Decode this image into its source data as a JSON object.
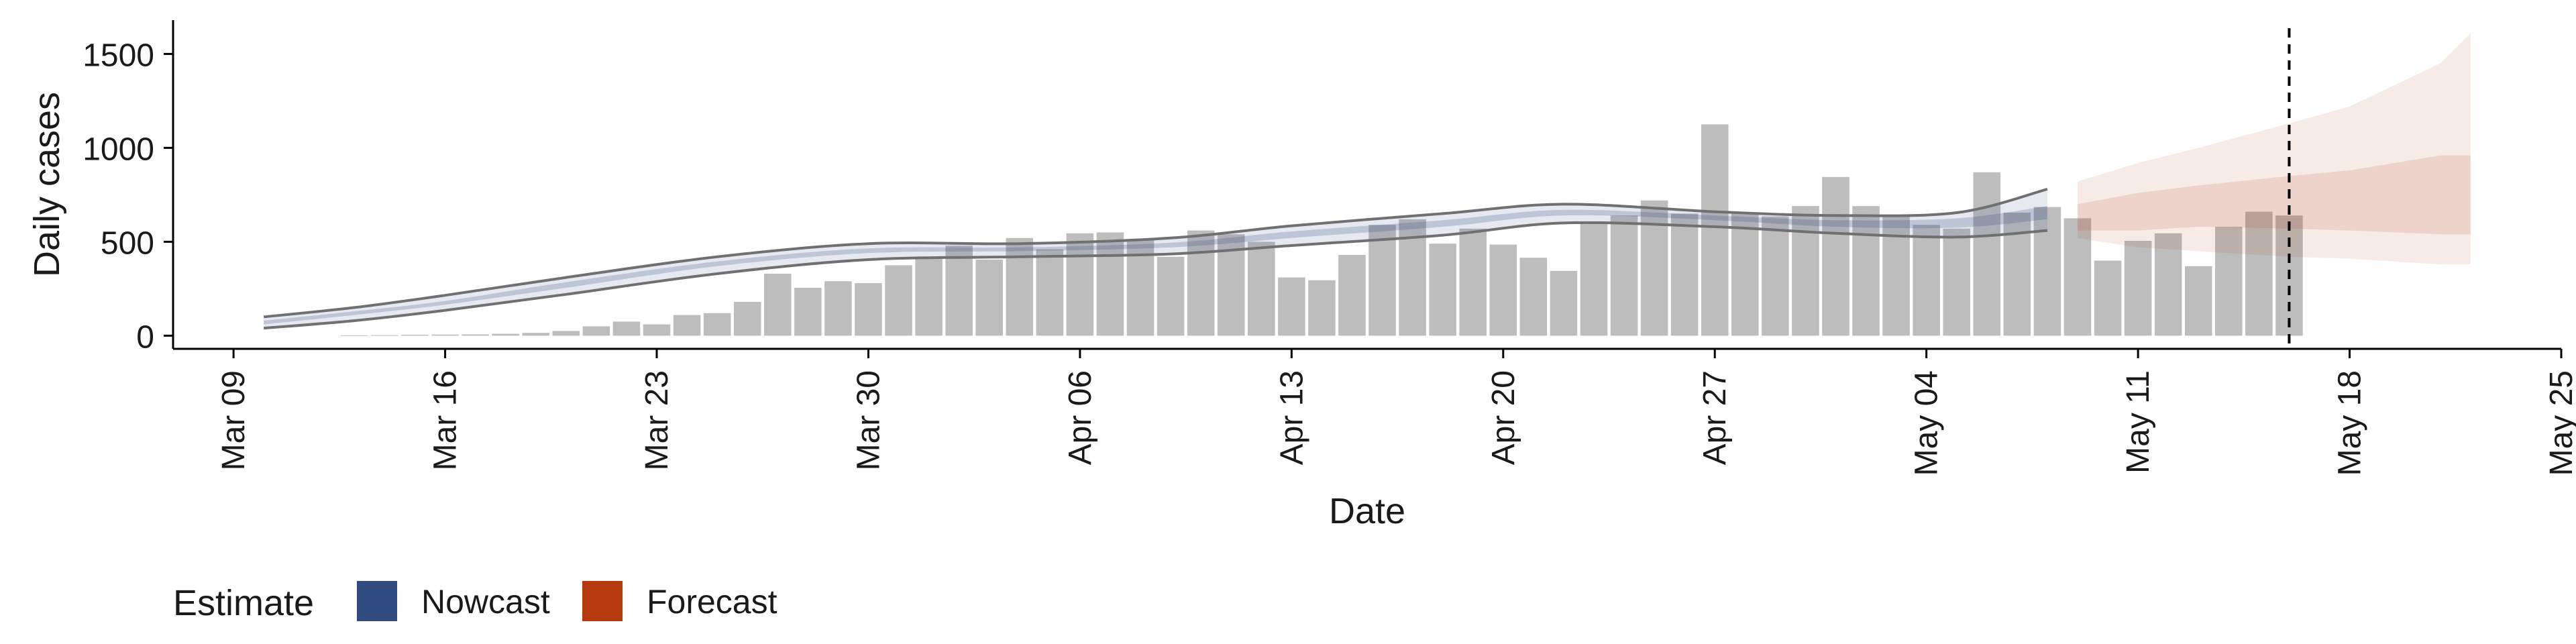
{
  "chart_data": {
    "type": "bar",
    "xlabel": "Date",
    "ylabel": "Daily cases",
    "x_ticks": [
      "Mar 09",
      "Mar 16",
      "Mar 23",
      "Mar 30",
      "Apr 06",
      "Apr 13",
      "Apr 20",
      "Apr 27",
      "May 04",
      "May 11",
      "May 18",
      "May 25"
    ],
    "y_ticks": [
      0,
      500,
      1000,
      1500
    ],
    "xlim": [
      "2020-03-07",
      "2020-05-25"
    ],
    "ylim": [
      -70,
      1680
    ],
    "grid": false,
    "legend": {
      "title": "Estimate",
      "position": "bottom-left",
      "entries": [
        {
          "label": "Nowcast",
          "color": "#2f4b80"
        },
        {
          "label": "Forecast",
          "color": "#b5390c"
        }
      ]
    },
    "forecast_start": "2020-05-16",
    "colors": {
      "bars": "#bdbdbd",
      "nowcast": "#2f4b80",
      "forecast": "#b5390c",
      "ci_lines": "#707070",
      "forecast_line": "#000000"
    },
    "series": [
      {
        "name": "Daily cases",
        "kind": "bars",
        "dates": [
          "2020-03-13",
          "2020-03-14",
          "2020-03-15",
          "2020-03-16",
          "2020-03-17",
          "2020-03-18",
          "2020-03-19",
          "2020-03-20",
          "2020-03-21",
          "2020-03-22",
          "2020-03-23",
          "2020-03-24",
          "2020-03-25",
          "2020-03-26",
          "2020-03-27",
          "2020-03-28",
          "2020-03-29",
          "2020-03-30",
          "2020-03-31",
          "2020-04-01",
          "2020-04-02",
          "2020-04-03",
          "2020-04-04",
          "2020-04-05",
          "2020-04-06",
          "2020-04-07",
          "2020-04-08",
          "2020-04-09",
          "2020-04-10",
          "2020-04-11",
          "2020-04-12",
          "2020-04-13",
          "2020-04-14",
          "2020-04-15",
          "2020-04-16",
          "2020-04-17",
          "2020-04-18",
          "2020-04-19",
          "2020-04-20",
          "2020-04-21",
          "2020-04-22",
          "2020-04-23",
          "2020-04-24",
          "2020-04-25",
          "2020-04-26",
          "2020-04-27",
          "2020-04-28",
          "2020-04-29",
          "2020-04-30",
          "2020-05-01",
          "2020-05-02",
          "2020-05-03",
          "2020-05-04",
          "2020-05-05",
          "2020-05-06",
          "2020-05-07",
          "2020-05-08",
          "2020-05-09",
          "2020-05-10",
          "2020-05-11",
          "2020-05-12",
          "2020-05-13",
          "2020-05-14",
          "2020-05-15",
          "2020-05-16"
        ],
        "values": [
          2,
          3,
          5,
          6,
          7,
          10,
          15,
          25,
          50,
          75,
          60,
          110,
          120,
          180,
          330,
          255,
          290,
          280,
          375,
          420,
          480,
          405,
          520,
          460,
          545,
          550,
          510,
          420,
          560,
          540,
          500,
          310,
          295,
          430,
          590,
          620,
          490,
          570,
          485,
          415,
          345,
          600,
          640,
          720,
          650,
          1125,
          650,
          635,
          690,
          845,
          690,
          640,
          590,
          570,
          870,
          655,
          685,
          625,
          400,
          505,
          545,
          370,
          580,
          660,
          640
        ]
      },
      {
        "name": "Nowcast",
        "kind": "band",
        "dates": [
          "2020-03-10",
          "2020-03-13",
          "2020-03-16",
          "2020-03-20",
          "2020-03-25",
          "2020-03-30",
          "2020-04-04",
          "2020-04-09",
          "2020-04-13",
          "2020-04-18",
          "2020-04-22",
          "2020-04-27",
          "2020-05-01",
          "2020-05-05",
          "2020-05-08"
        ],
        "lower": [
          40,
          80,
          135,
          220,
          330,
          405,
          420,
          435,
          480,
          535,
          600,
          580,
          545,
          525,
          560
        ],
        "upper": [
          100,
          150,
          215,
          310,
          420,
          490,
          490,
          520,
          585,
          650,
          700,
          660,
          640,
          655,
          780
        ],
        "inner_lower": [
          60,
          110,
          165,
          255,
          370,
          440,
          450,
          470,
          520,
          580,
          640,
          615,
          580,
          575,
          620
        ],
        "inner_upper": [
          80,
          130,
          185,
          285,
          395,
          465,
          470,
          495,
          555,
          615,
          670,
          640,
          615,
          625,
          690
        ]
      },
      {
        "name": "Forecast",
        "kind": "band",
        "dates": [
          "2020-05-09",
          "2020-05-11",
          "2020-05-13",
          "2020-05-16",
          "2020-05-18",
          "2020-05-21",
          "2020-05-22"
        ],
        "lower": [
          520,
          470,
          450,
          420,
          410,
          380,
          380
        ],
        "upper": [
          820,
          920,
          1000,
          1130,
          1220,
          1450,
          1610
        ],
        "inner_lower": [
          560,
          560,
          580,
          570,
          560,
          540,
          540
        ],
        "inner_upper": [
          700,
          760,
          800,
          850,
          880,
          960,
          960
        ]
      }
    ]
  }
}
